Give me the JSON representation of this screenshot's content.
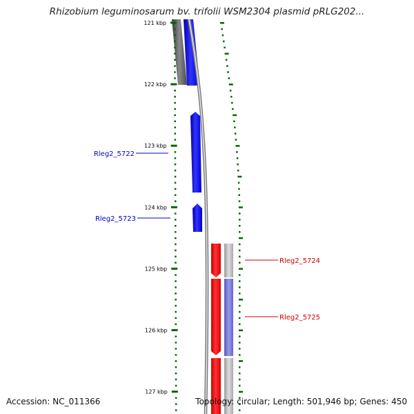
{
  "title": "Rhizobium leguminosarum bv. trifolii WSM2304 plasmid pRLG202...",
  "accession": "Accession: NC_011366",
  "topology": "Topology: circular; Length: 501,946 bp; Genes: 450",
  "ticks": [
    {
      "kbp": 121,
      "label": "121 kbp"
    },
    {
      "kbp": 122,
      "label": "122 kbp"
    },
    {
      "kbp": 123,
      "label": "123 kbp"
    },
    {
      "kbp": 124,
      "label": "124 kbp"
    },
    {
      "kbp": 125,
      "label": "125 kbp"
    },
    {
      "kbp": 126,
      "label": "126 kbp"
    },
    {
      "kbp": 127,
      "label": "127 kbp"
    }
  ],
  "genes": [
    {
      "name": "Rleg2_5722",
      "strand": "left",
      "start_kbp": 122.45,
      "end_kbp": 123.75,
      "color": "#0000ff"
    },
    {
      "name": "Rleg2_5723",
      "strand": "left",
      "start_kbp": 123.95,
      "end_kbp": 124.4,
      "color": "#0000ff"
    },
    {
      "name": "Rleg2_5724",
      "strand": "right",
      "start_kbp": 124.65,
      "end_kbp": 125.15,
      "color": "#ff0000"
    },
    {
      "name": "Rleg2_5725",
      "strand": "right",
      "start_kbp": 125.2,
      "end_kbp": 126.45,
      "color": "#ff0000"
    }
  ],
  "colors": {
    "forward_gene": "#0000ff",
    "reverse_gene": "#ff0000",
    "tick": "#006600",
    "backbone": "#9a9a9a",
    "cog_gray": "#b8b8b8",
    "cog_purple": "#7777dd",
    "dark_gray": "#555555"
  }
}
